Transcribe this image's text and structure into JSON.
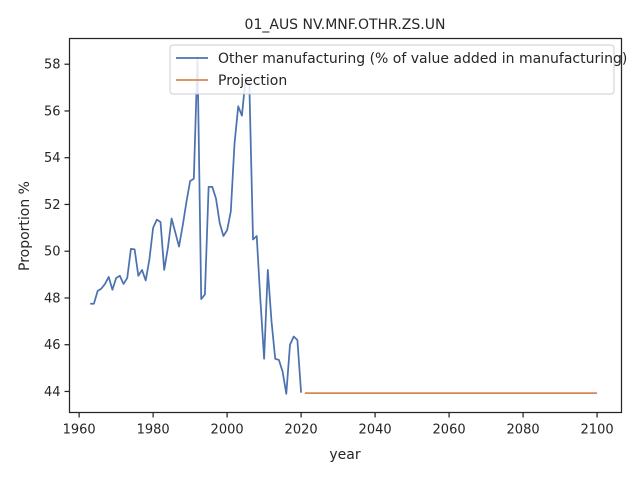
{
  "chart_data": {
    "type": "line",
    "title": "01_AUS NV.MNF.OTHR.ZS.UN",
    "xlabel": "year",
    "ylabel": "Proportion %",
    "xlim": [
      1957.4,
      2106.6
    ],
    "ylim": [
      43.1,
      59.1
    ],
    "xticks": [
      1960,
      1980,
      2000,
      2020,
      2040,
      2060,
      2080,
      2100
    ],
    "yticks": [
      44,
      46,
      48,
      50,
      52,
      54,
      56,
      58
    ],
    "grid": false,
    "legend_position": "top-right",
    "series": [
      {
        "name": "Other manufacturing (% of value added in manufacturing)",
        "color": "#4c72b0",
        "points": [
          [
            1963,
            47.75
          ],
          [
            1964,
            47.75
          ],
          [
            1965,
            48.3
          ],
          [
            1966,
            48.4
          ],
          [
            1967,
            48.6
          ],
          [
            1968,
            48.9
          ],
          [
            1969,
            48.35
          ],
          [
            1970,
            48.85
          ],
          [
            1971,
            48.95
          ],
          [
            1972,
            48.6
          ],
          [
            1973,
            48.85
          ],
          [
            1974,
            50.1
          ],
          [
            1975,
            50.08
          ],
          [
            1976,
            48.95
          ],
          [
            1977,
            49.2
          ],
          [
            1978,
            48.75
          ],
          [
            1979,
            49.65
          ],
          [
            1980,
            51.0
          ],
          [
            1981,
            51.35
          ],
          [
            1982,
            51.25
          ],
          [
            1983,
            49.2
          ],
          [
            1984,
            50.15
          ],
          [
            1985,
            51.4
          ],
          [
            1986,
            50.8
          ],
          [
            1987,
            50.2
          ],
          [
            1988,
            51.1
          ],
          [
            1989,
            52.1
          ],
          [
            1990,
            53.0
          ],
          [
            1991,
            53.1
          ],
          [
            1992,
            58.3
          ],
          [
            1993,
            47.95
          ],
          [
            1994,
            48.15
          ],
          [
            1995,
            52.75
          ],
          [
            1996,
            52.75
          ],
          [
            1997,
            52.25
          ],
          [
            1998,
            51.2
          ],
          [
            1999,
            50.65
          ],
          [
            2000,
            50.9
          ],
          [
            2001,
            51.7
          ],
          [
            2002,
            54.6
          ],
          [
            2003,
            56.2
          ],
          [
            2004,
            55.8
          ],
          [
            2005,
            57.4
          ],
          [
            2006,
            57.2
          ],
          [
            2007,
            50.5
          ],
          [
            2008,
            50.65
          ],
          [
            2009,
            47.9
          ],
          [
            2010,
            45.4
          ],
          [
            2011,
            49.2
          ],
          [
            2012,
            47.0
          ],
          [
            2013,
            45.4
          ],
          [
            2014,
            45.35
          ],
          [
            2015,
            44.85
          ],
          [
            2016,
            43.9
          ],
          [
            2017,
            46.0
          ],
          [
            2018,
            46.35
          ],
          [
            2019,
            46.2
          ],
          [
            2020,
            43.95
          ]
        ]
      },
      {
        "name": "Projection",
        "color": "#dd8452",
        "points": [
          [
            2021,
            43.93
          ],
          [
            2100,
            43.93
          ]
        ]
      }
    ]
  }
}
